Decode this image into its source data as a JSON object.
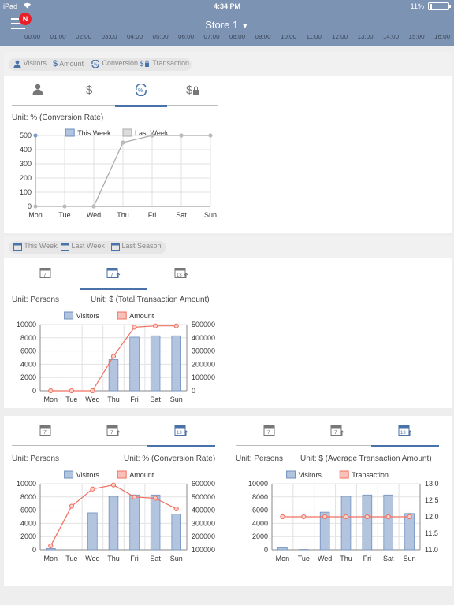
{
  "status_bar": {
    "carrier": "iPad",
    "time": "4:34 PM",
    "battery": "11%"
  },
  "header": {
    "title": "Store 1",
    "dropdown_glyph": "▼",
    "badge": "N"
  },
  "hour_strip": [
    "00:00",
    "01:00",
    "02:00",
    "03:00",
    "04:00",
    "05:00",
    "06:00",
    "07:00",
    "08:00",
    "09:00",
    "10:00",
    "11:00",
    "12:00",
    "13:00",
    "14:00",
    "15:00",
    "16:00"
  ],
  "panel1": {
    "legend": [
      "Visitors",
      "Amount",
      "Conversion",
      "Transaction"
    ],
    "unit": "Unit: % (Conversion Rate)",
    "tabs": [
      "visitors-icon",
      "dollar-icon",
      "conversion-icon",
      "transaction-icon"
    ],
    "active_tab": 2
  },
  "panel2": {
    "legend": [
      "This Week",
      "Last Week",
      "Last Season"
    ],
    "unit_left": "Unit: Persons",
    "unit_right": "Unit: $ (Total Transaction Amount)",
    "tabs": [
      "calendar-day-icon",
      "calendar-week-icon",
      "calendar-season-icon"
    ],
    "active_tab": 1
  },
  "panel3": {
    "left": {
      "unit_left": "Unit: Persons",
      "unit_right": "Unit: % (Conversion Rate)",
      "tabs": [
        "calendar-day-icon",
        "calendar-week-icon",
        "calendar-season-icon"
      ],
      "active_tab": 2
    },
    "right": {
      "unit_left": "Unit: Persons",
      "unit_right": "Unit: $ (Average Transaction Amount)",
      "tabs": [
        "calendar-day-icon",
        "calendar-week-icon",
        "calendar-season-icon"
      ],
      "active_tab": 2
    }
  },
  "colors": {
    "nav": "#7d93b3",
    "accent": "#4a72aa",
    "bar": "#b3c5de",
    "bar_stroke": "#6f8fbd",
    "line_red": "#f07060",
    "line_gray": "#aaaaaa"
  },
  "chart_data": [
    {
      "type": "line",
      "categories": [
        "Mon",
        "Tue",
        "Wed",
        "Thu",
        "Fri",
        "Sat",
        "Sun"
      ],
      "series": [
        {
          "name": "This Week",
          "values": [
            500,
            null,
            null,
            null,
            null,
            null,
            null
          ]
        },
        {
          "name": "Last Week",
          "values": [
            0,
            0,
            0,
            450,
            500,
            500,
            500
          ]
        }
      ],
      "ylim": [
        0,
        500
      ],
      "yticks": [
        0,
        100,
        200,
        300,
        400,
        500
      ],
      "legend": "top-center",
      "grid": true
    },
    {
      "type": "bar",
      "categories": [
        "Mon",
        "Tue",
        "Wed",
        "Thu",
        "Fri",
        "Sat",
        "Sun"
      ],
      "series": [
        {
          "name": "Visitors",
          "values": [
            0,
            0,
            0,
            4700,
            8100,
            8300,
            8300
          ]
        },
        {
          "name": "Amount",
          "values": [
            0,
            0,
            0,
            260000,
            480000,
            490000,
            490000
          ]
        }
      ],
      "ylim": [
        0,
        10000
      ],
      "yticks": [
        0,
        2000,
        4000,
        6000,
        8000,
        10000
      ],
      "y2lim": [
        0,
        500000
      ],
      "y2ticks": [
        0,
        100000,
        200000,
        300000,
        400000,
        500000
      ],
      "legend": "top-center",
      "grid": true
    },
    {
      "type": "bar",
      "categories": [
        "Mon",
        "Tue",
        "Wed",
        "Thu",
        "Fri",
        "Sat",
        "Sun"
      ],
      "series": [
        {
          "name": "Visitors",
          "values": [
            200,
            0,
            5600,
            8100,
            8300,
            8300,
            5400
          ]
        },
        {
          "name": "Amount",
          "values": [
            130000,
            430000,
            560000,
            590000,
            500000,
            490000,
            410000
          ]
        }
      ],
      "ylim": [
        0,
        10000
      ],
      "yticks": [
        0,
        2000,
        4000,
        6000,
        8000,
        10000
      ],
      "y2lim": [
        100000,
        600000
      ],
      "y2ticks": [
        100000,
        200000,
        300000,
        400000,
        500000,
        600000
      ],
      "legend": "top-center",
      "grid": true
    },
    {
      "type": "bar",
      "categories": [
        "Mon",
        "Tue",
        "Wed",
        "Thu",
        "Fri",
        "Sat",
        "Sun"
      ],
      "series": [
        {
          "name": "Visitors",
          "values": [
            300,
            50,
            5700,
            8100,
            8300,
            8300,
            5500
          ]
        },
        {
          "name": "Transaction",
          "values": [
            12.0,
            12.0,
            12.0,
            12.0,
            12.0,
            12.0,
            12.0
          ]
        }
      ],
      "ylim": [
        0,
        10000
      ],
      "yticks": [
        0,
        2000,
        4000,
        6000,
        8000,
        10000
      ],
      "y2lim": [
        11.0,
        13.0
      ],
      "y2ticks": [
        "11.0",
        "11.5",
        "12.0",
        "12.5",
        "13.0"
      ],
      "legend": "top-center",
      "grid": true
    }
  ]
}
